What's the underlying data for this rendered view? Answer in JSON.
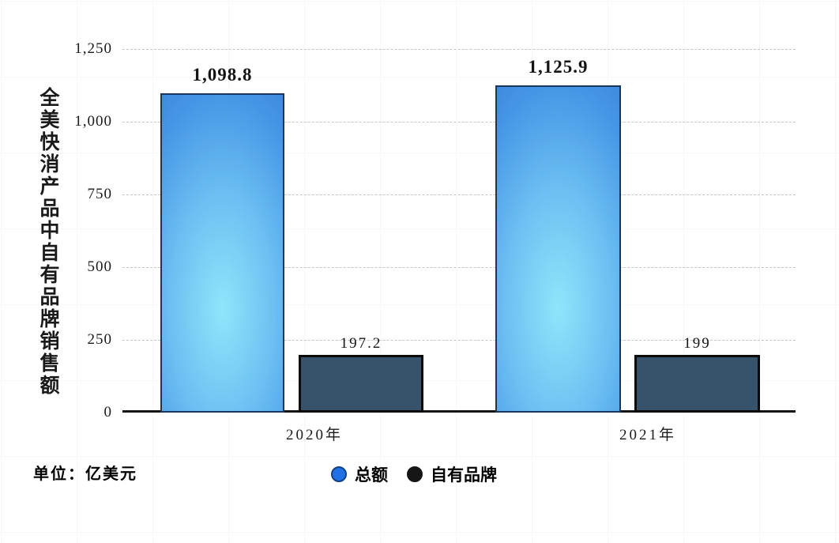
{
  "chart_data": {
    "type": "bar",
    "title": "",
    "categories": [
      "2020年",
      "2021年"
    ],
    "series": [
      {
        "name": "总额",
        "values": [
          1098.8,
          1125.9
        ],
        "value_labels": [
          "1,098.8",
          "1,125.9"
        ],
        "color": "#3f8ade"
      },
      {
        "name": "自有品牌",
        "values": [
          197.2,
          199
        ],
        "value_labels": [
          "197.2",
          "199"
        ],
        "color": "#36536b"
      }
    ],
    "ylabel": "全美快消产品中自有品牌销售额",
    "xlabel": "",
    "ylim": [
      0,
      1250
    ],
    "y_ticks": [
      "0",
      "250",
      "500",
      "750",
      "1,000",
      "1,250"
    ],
    "grid": true,
    "grid_style": "dashed-horizontal",
    "legend_position": "bottom-center",
    "unit_note": "单位：亿美元"
  },
  "footer": {
    "unit_label": "单位：亿美元"
  },
  "legend": {
    "items": [
      {
        "label": "总额",
        "fill": "#2170e6",
        "border": "#0f4186"
      },
      {
        "label": "自有品牌",
        "fill": "#161616",
        "border": "#161616"
      }
    ]
  }
}
